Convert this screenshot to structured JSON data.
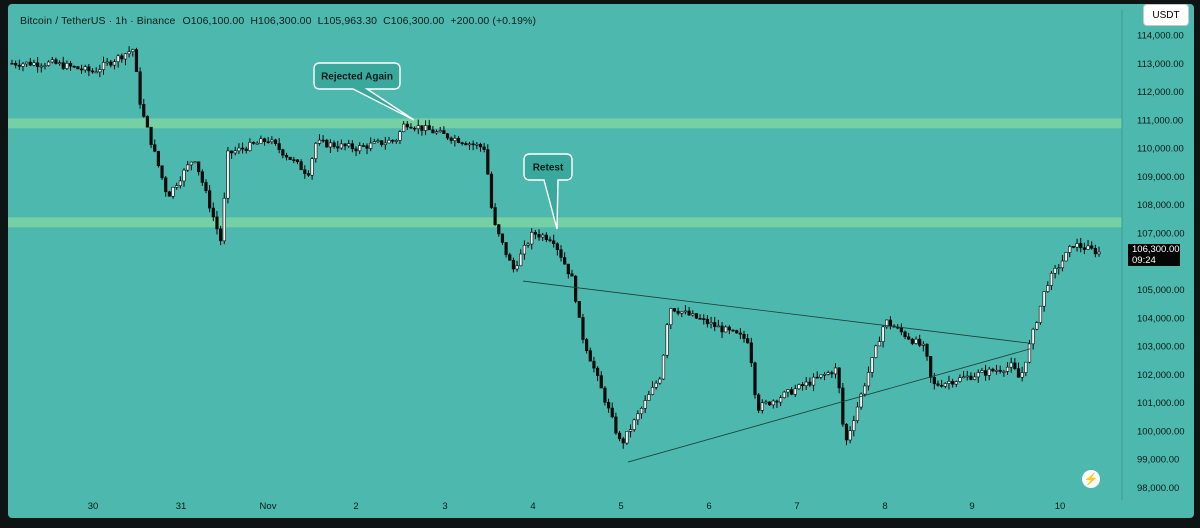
{
  "header": {
    "symbol": "Bitcoin / TetherUS · 1h · Binance",
    "open": "O106,100.00",
    "high": "H106,300.00",
    "low": "L105,963.30",
    "close": "C106,300.00",
    "change": "+200.00 (+0.19%)"
  },
  "unit_button": "USDT",
  "last_price": {
    "value": "106,300.00",
    "countdown": "09:24"
  },
  "annotations": [
    "Rejected Again",
    "Retest"
  ],
  "colors": {
    "background": "#4db8ad",
    "zone": "#7ed4a4",
    "candle": "#0a0a0a",
    "callout": "#3aa89c"
  },
  "icons": {
    "bolt": "lightning-icon"
  },
  "chart_data": {
    "type": "candlestick",
    "title": "",
    "xlabel": "",
    "ylabel": "",
    "ylim": [
      97700,
      114600
    ],
    "x_tick_labels": [
      "30",
      "31",
      "Nov",
      "2",
      "3",
      "4",
      "5",
      "6",
      "7",
      "8",
      "9",
      "10"
    ],
    "y_tick_labels": [
      "114,000.00",
      "113,000.00",
      "112,000.00",
      "111,000.00",
      "110,000.00",
      "109,000.00",
      "108,000.00",
      "107,000.00",
      "105,000.00",
      "104,000.00",
      "103,000.00",
      "102,000.00",
      "101,000.00",
      "100,000.00",
      "99,000.00",
      "98,000.00"
    ],
    "y_ticks": [
      114000,
      113000,
      112000,
      111000,
      110000,
      109000,
      108000,
      107000,
      105000,
      104000,
      103000,
      102000,
      101000,
      100000,
      99000,
      98000
    ],
    "zones": [
      {
        "from": 110700,
        "to": 111050
      },
      {
        "from": 107200,
        "to": 107550
      }
    ],
    "trendlines": [
      {
        "from": [
          "4",
          105300
        ],
        "to": [
          "10",
          103100
        ]
      },
      {
        "from": [
          "5",
          98900
        ],
        "to": [
          "10",
          102900
        ]
      }
    ],
    "path": [
      [
        "30",
        113000
      ],
      [
        "30",
        112700
      ],
      [
        "30",
        113500
      ],
      [
        "31",
        111400
      ],
      [
        "31",
        108300
      ],
      [
        "31",
        109700
      ],
      [
        "31",
        106700
      ],
      [
        "Nov",
        109800
      ],
      [
        "Nov",
        110300
      ],
      [
        "Nov",
        109100
      ],
      [
        "2",
        110200
      ],
      [
        "2",
        110000
      ],
      [
        "2",
        110300
      ],
      [
        "3",
        110900
      ],
      [
        "3",
        110000
      ],
      [
        "4",
        107400
      ],
      [
        "4",
        105700
      ],
      [
        "4",
        107000
      ],
      [
        "4",
        106800
      ],
      [
        "4",
        105300
      ],
      [
        "5",
        103500
      ],
      [
        "5",
        99500
      ],
      [
        "5",
        102000
      ],
      [
        "6",
        104400
      ],
      [
        "6",
        103200
      ],
      [
        "7",
        100800
      ],
      [
        "7",
        102200
      ],
      [
        "8",
        99500
      ],
      [
        "8",
        103900
      ],
      [
        "8",
        102900
      ],
      [
        "9",
        101600
      ],
      [
        "9",
        102300
      ],
      [
        "10",
        101800
      ],
      [
        "10",
        105200
      ],
      [
        "10",
        106600
      ],
      [
        "10",
        106300
      ]
    ]
  }
}
